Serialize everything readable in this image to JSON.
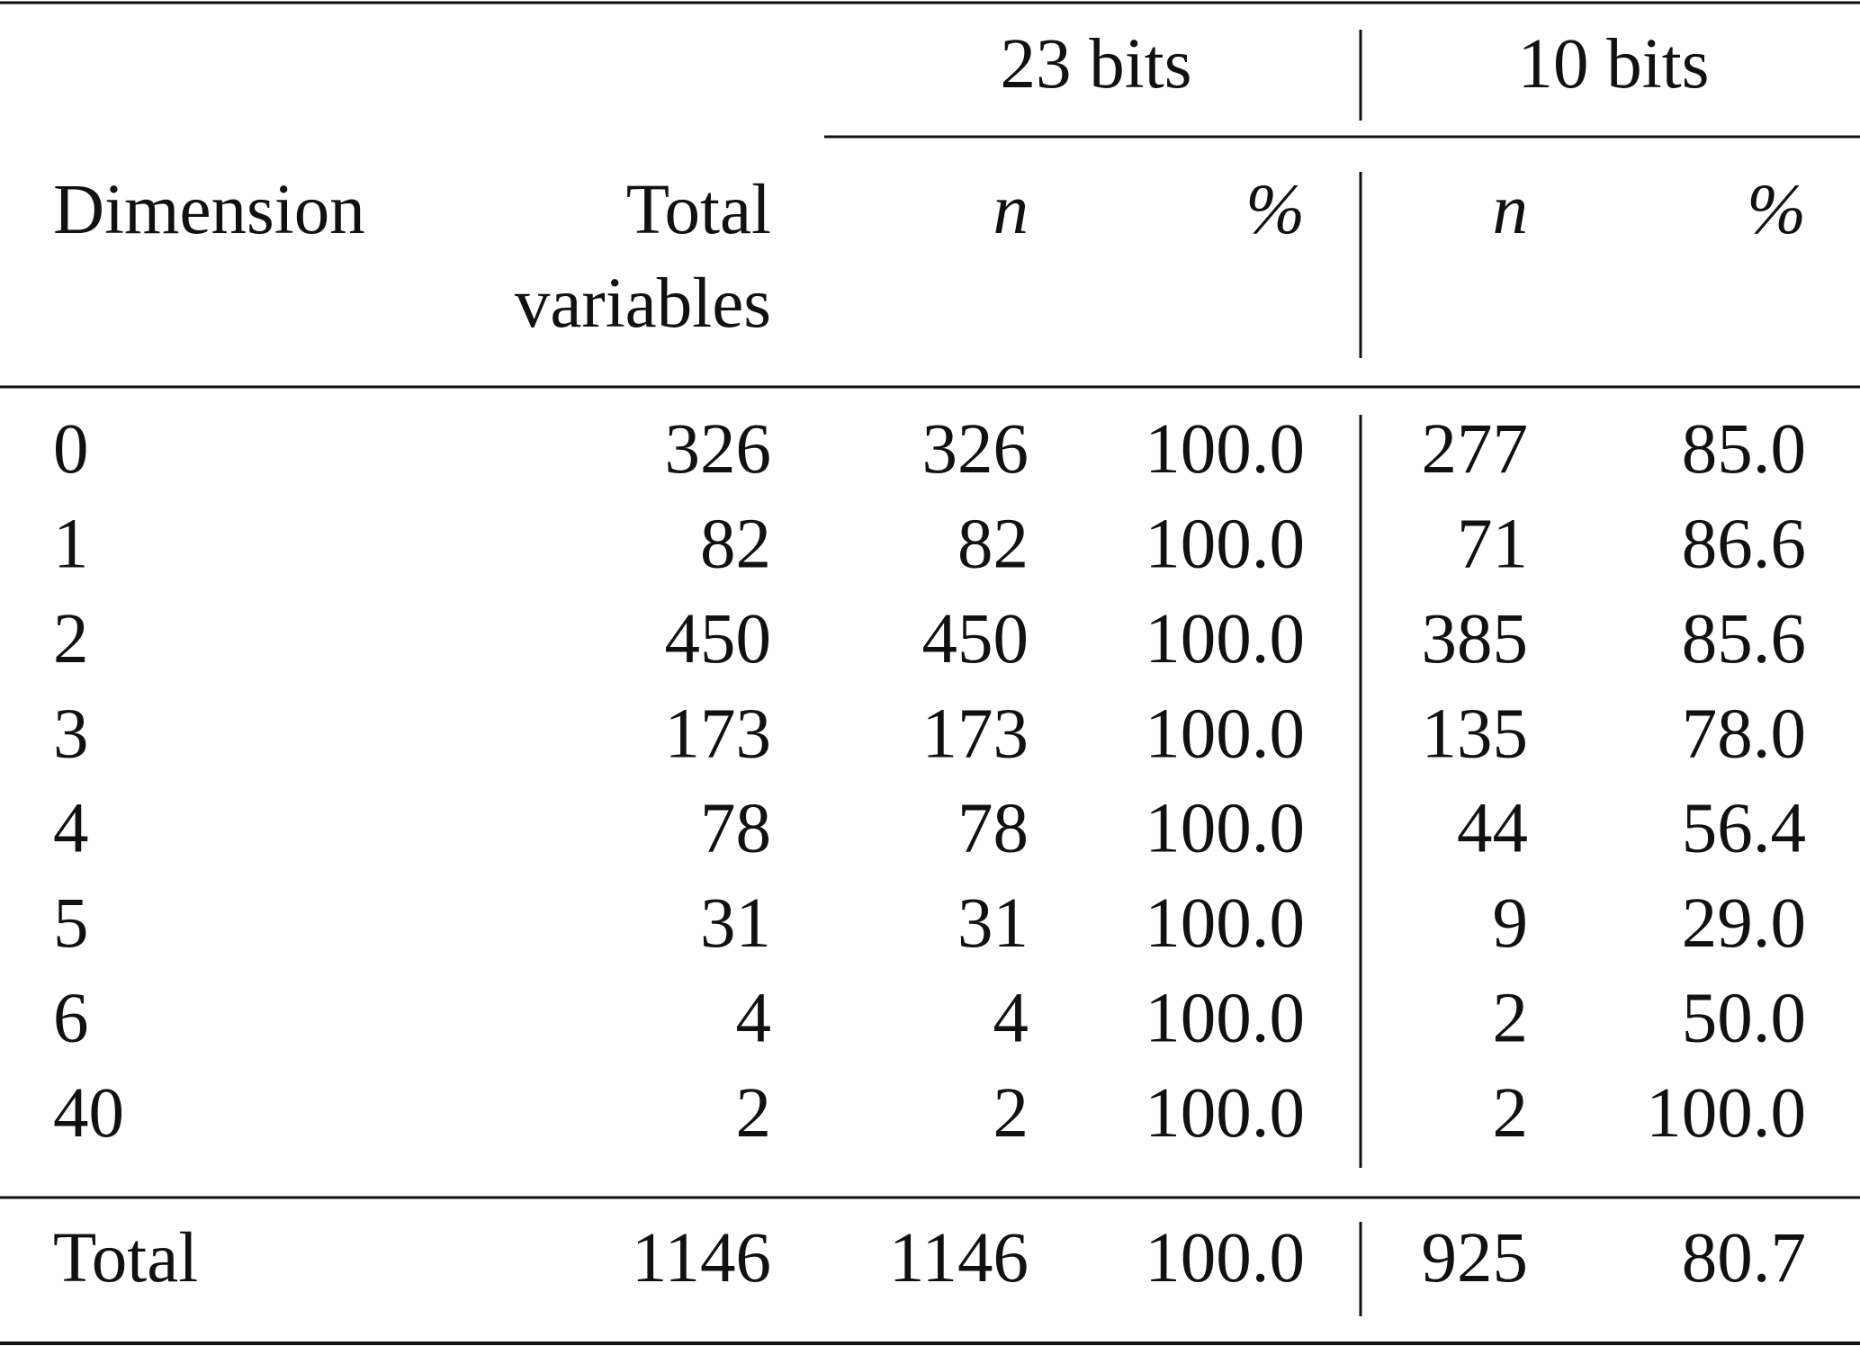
{
  "table": {
    "groups": [
      "23 bits",
      "10 bits"
    ],
    "columns": [
      "Dimension",
      [
        "Total",
        "variables"
      ],
      "n",
      "%",
      "n",
      "%"
    ],
    "rows": [
      [
        "0",
        "326",
        "326",
        "100.0",
        "277",
        "85.0"
      ],
      [
        "1",
        "82",
        "82",
        "100.0",
        "71",
        "86.6"
      ],
      [
        "2",
        "450",
        "450",
        "100.0",
        "385",
        "85.6"
      ],
      [
        "3",
        "173",
        "173",
        "100.0",
        "135",
        "78.0"
      ],
      [
        "4",
        "78",
        "78",
        "100.0",
        "44",
        "56.4"
      ],
      [
        "5",
        "31",
        "31",
        "100.0",
        "9",
        "29.0"
      ],
      [
        "6",
        "4",
        "4",
        "100.0",
        "2",
        "50.0"
      ],
      [
        "40",
        "2",
        "2",
        "100.0",
        "2",
        "100.0"
      ]
    ],
    "total": [
      "Total",
      "1146",
      "1146",
      "100.0",
      "925",
      "80.7"
    ]
  }
}
